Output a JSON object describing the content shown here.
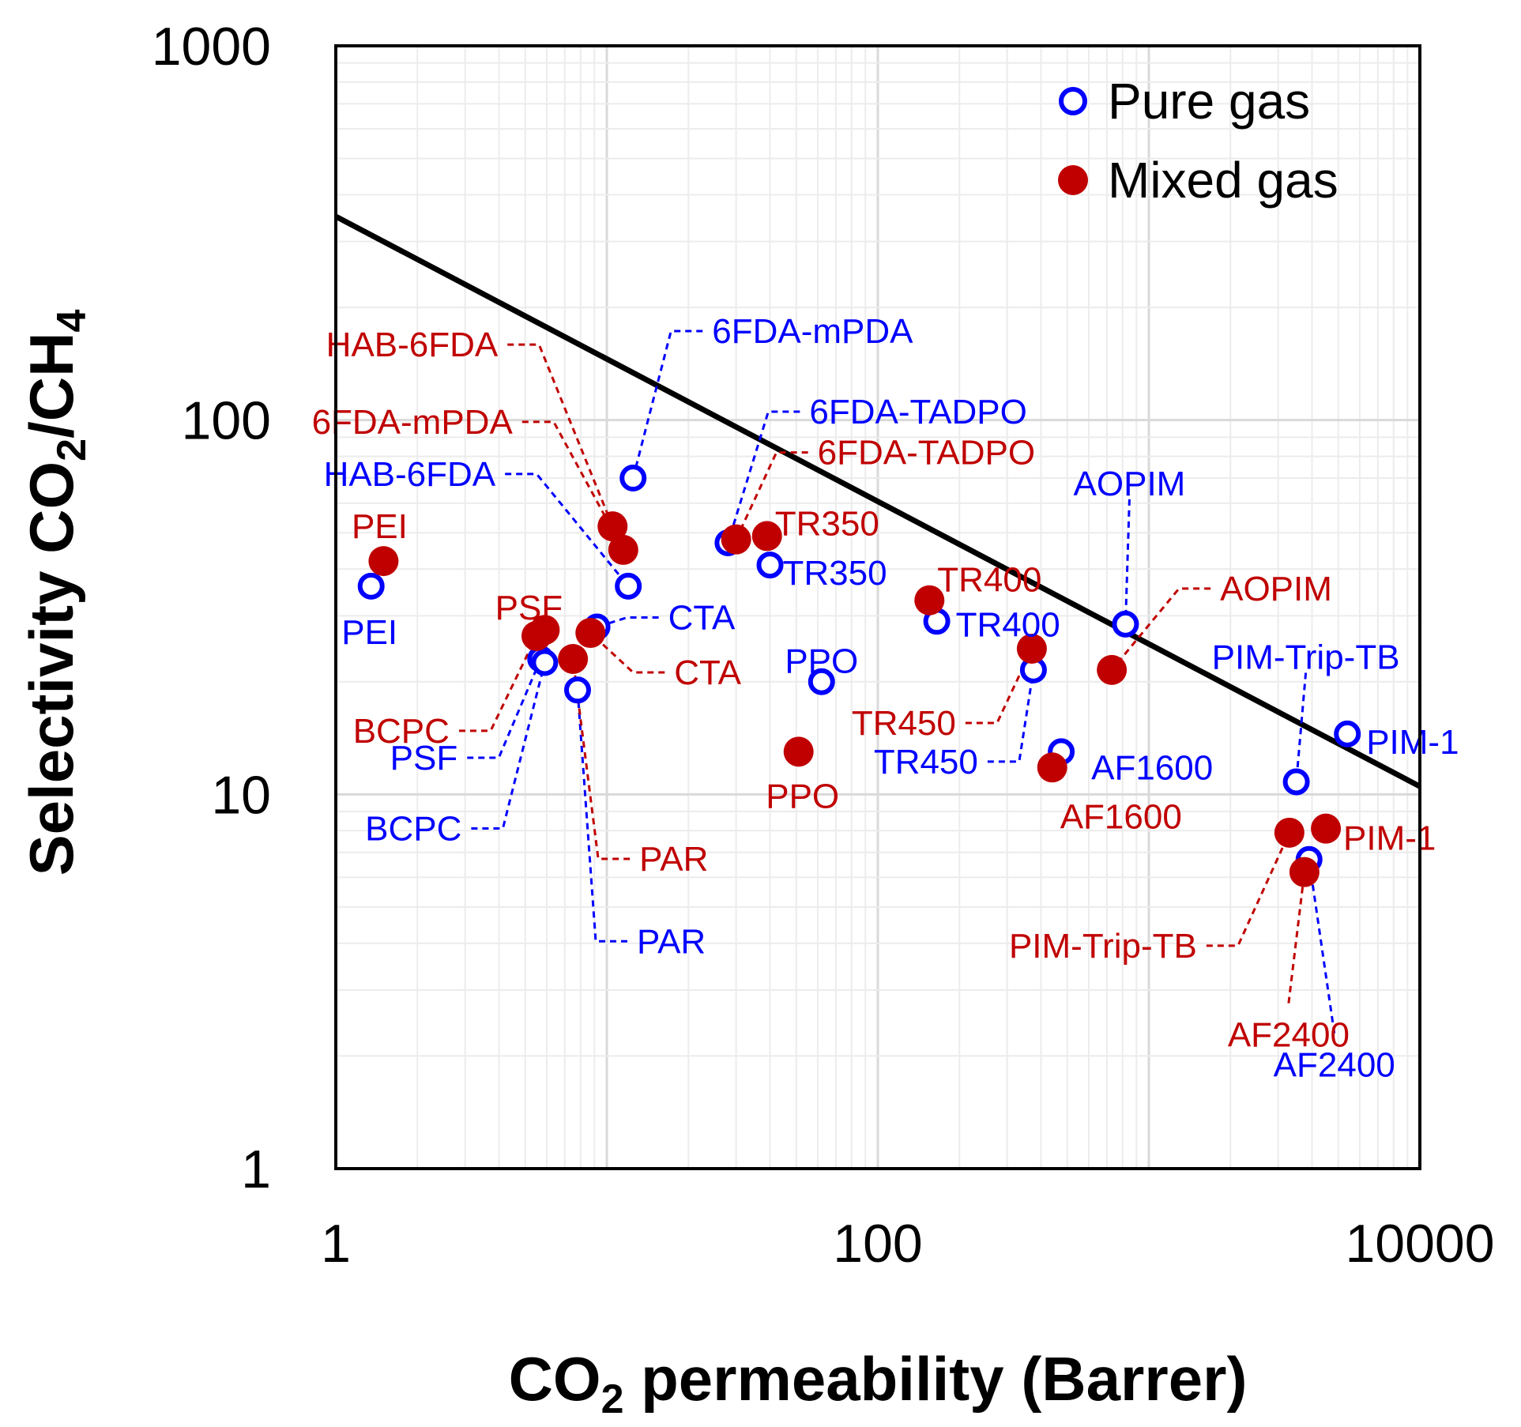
{
  "colors": {
    "pure": "#0000ff",
    "mixed": "#c00000",
    "line": "#000000"
  },
  "chart_data": {
    "type": "scatter",
    "xscale": "log",
    "yscale": "log",
    "xlim": [
      1,
      10000
    ],
    "ylim": [
      1,
      1000
    ],
    "xticks": [
      "1",
      "100",
      "10000"
    ],
    "yticks": [
      "1",
      "10",
      "100",
      "1000"
    ],
    "xlabel": {
      "pre": "CO",
      "sub": "2",
      "post": " permeability (Barrer)"
    },
    "ylabel": {
      "pre": "Selectivity CO",
      "sub1": "2",
      "mid": "/CH",
      "sub2": "4"
    },
    "grid": true,
    "legend_position": "top-right",
    "legend": [
      {
        "name": "Pure gas",
        "marker": "open-circle"
      },
      {
        "name": "Mixed gas",
        "marker": "filled-circle"
      }
    ],
    "upper_bound_line": {
      "x": [
        1,
        10000
      ],
      "y": [
        350,
        10.5
      ]
    },
    "series": [
      {
        "name": "Pure gas",
        "marker": "open-circle",
        "points": [
          {
            "label": "PEI",
            "x": 1.35,
            "y": 36
          },
          {
            "label": "PSF",
            "x": 5.7,
            "y": 23
          },
          {
            "label": "BCPC",
            "x": 5.9,
            "y": 22.5
          },
          {
            "label": "PAR",
            "x": 7.8,
            "y": 19
          },
          {
            "label": "CTA",
            "x": 9.2,
            "y": 28
          },
          {
            "label": "HAB-6FDA",
            "x": 12,
            "y": 36
          },
          {
            "label": "6FDA-mPDA",
            "x": 12.5,
            "y": 70
          },
          {
            "label": "6FDA-TADPO",
            "x": 28,
            "y": 47
          },
          {
            "label": "TR350",
            "x": 40,
            "y": 41
          },
          {
            "label": "PPO",
            "x": 62,
            "y": 20
          },
          {
            "label": "TR400",
            "x": 165,
            "y": 29
          },
          {
            "label": "TR450",
            "x": 375,
            "y": 21.5
          },
          {
            "label": "AF1600",
            "x": 475,
            "y": 13
          },
          {
            "label": "AOPIM",
            "x": 820,
            "y": 28.5
          },
          {
            "label": "PIM-Trip-TB",
            "x": 3500,
            "y": 10.8
          },
          {
            "label": "PIM-1",
            "x": 5400,
            "y": 14.5
          },
          {
            "label": "AF2400",
            "x": 3900,
            "y": 6.7
          }
        ]
      },
      {
        "name": "Mixed gas",
        "marker": "filled-circle",
        "points": [
          {
            "label": "PEI",
            "x": 1.5,
            "y": 42
          },
          {
            "label": "PSF",
            "x": 5.9,
            "y": 27.5
          },
          {
            "label": "BCPC",
            "x": 5.5,
            "y": 26.5
          },
          {
            "label": "PAR",
            "x": 7.5,
            "y": 23
          },
          {
            "label": "CTA",
            "x": 8.7,
            "y": 27
          },
          {
            "label": "HAB-6FDA",
            "x": 10.5,
            "y": 52
          },
          {
            "label": "6FDA-mPDA",
            "x": 11.5,
            "y": 45
          },
          {
            "label": "6FDA-TADPO",
            "x": 30,
            "y": 48
          },
          {
            "label": "TR350",
            "x": 39,
            "y": 49
          },
          {
            "label": "PPO",
            "x": 51,
            "y": 13
          },
          {
            "label": "TR400",
            "x": 155,
            "y": 33
          },
          {
            "label": "TR450",
            "x": 370,
            "y": 24.5
          },
          {
            "label": "AF1600",
            "x": 440,
            "y": 11.8
          },
          {
            "label": "AOPIM",
            "x": 730,
            "y": 21.5
          },
          {
            "label": "PIM-Trip-TB",
            "x": 3300,
            "y": 7.9
          },
          {
            "label": "PIM-1",
            "x": 4500,
            "y": 8.1
          },
          {
            "label": "AF2400",
            "x": 3750,
            "y": 6.2
          }
        ]
      }
    ]
  }
}
